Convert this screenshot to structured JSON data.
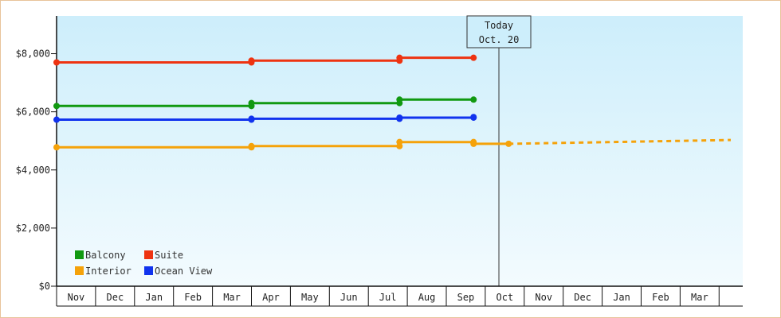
{
  "chart_data": {
    "type": "line",
    "title": "",
    "xlabel": "",
    "ylabel": "",
    "categories": [
      "Nov",
      "Dec",
      "Jan",
      "Feb",
      "Mar",
      "Apr",
      "May",
      "Jun",
      "Jul",
      "Aug",
      "Sep",
      "Oct",
      "Nov",
      "Dec",
      "Jan",
      "Feb",
      "Mar"
    ],
    "yticks": [
      "$0",
      "$2,000",
      "$4,000",
      "$6,000",
      "$8,000"
    ],
    "ytick_values": [
      0,
      2000,
      4000,
      6000,
      8000
    ],
    "ylim": [
      0,
      9300
    ],
    "grid": false,
    "legend_placement": "bottom-left",
    "today_marker": {
      "line1": "Today",
      "line2": "Oct. 20",
      "x": 11.35
    },
    "series": [
      {
        "name": "Balcony",
        "color": "#119911",
        "points": [
          [
            0,
            6200
          ],
          [
            5,
            6200
          ],
          [
            5,
            6300
          ],
          [
            8.8,
            6300
          ],
          [
            8.8,
            6420
          ],
          [
            10.7,
            6420
          ]
        ]
      },
      {
        "name": "Suite",
        "color": "#ee3311",
        "points": [
          [
            0,
            7700
          ],
          [
            5,
            7700
          ],
          [
            5,
            7760
          ],
          [
            8.8,
            7760
          ],
          [
            8.8,
            7860
          ],
          [
            10.7,
            7860
          ]
        ]
      },
      {
        "name": "Interior",
        "color": "#f5a20a",
        "points": [
          [
            0,
            4780
          ],
          [
            5,
            4780
          ],
          [
            5,
            4820
          ],
          [
            8.8,
            4820
          ],
          [
            8.8,
            4960
          ],
          [
            10.7,
            4960
          ],
          [
            10.7,
            4900
          ],
          [
            11.6,
            4900
          ]
        ]
      },
      {
        "name": "Ocean View",
        "color": "#1133ee",
        "points": [
          [
            0,
            5730
          ],
          [
            5,
            5730
          ],
          [
            5,
            5760
          ],
          [
            8.8,
            5760
          ],
          [
            8.8,
            5800
          ],
          [
            10.7,
            5800
          ],
          [
            10.7,
            5820
          ]
        ]
      }
    ],
    "forecast": {
      "name": "Interior",
      "color": "#f5a20a",
      "points": [
        [
          11.6,
          4900
        ],
        [
          17.3,
          5030
        ]
      ]
    }
  }
}
